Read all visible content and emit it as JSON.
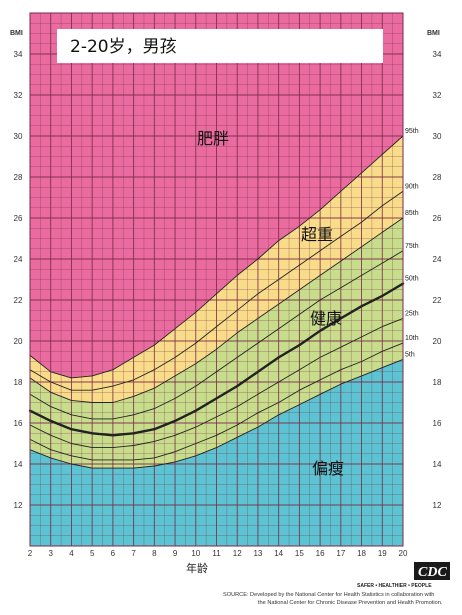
{
  "title": "2-20岁，男孩",
  "colors": {
    "obese": "#e96b9f",
    "overweight": "#f8dc8a",
    "healthy": "#c7dd8c",
    "underweight": "#5cc3d2",
    "grid": "#7a2a48",
    "curve": "#222222"
  },
  "chart_data": {
    "type": "line",
    "title": "2-20岁，男孩",
    "xlabel": "年龄",
    "ylabel": "BMI",
    "xlim": [
      2,
      20
    ],
    "ylim": [
      10,
      36
    ],
    "grid": true,
    "x_ticks": [
      "2",
      "3",
      "4",
      "5",
      "6",
      "7",
      "8",
      "9",
      "10",
      "11",
      "12",
      "13",
      "14",
      "15",
      "16",
      "17",
      "18",
      "19",
      "20"
    ],
    "y_ticks": [
      "12",
      "14",
      "16",
      "18",
      "20",
      "22",
      "24",
      "26",
      "28",
      "30",
      "32",
      "34"
    ],
    "x": [
      2,
      3,
      4,
      5,
      6,
      7,
      8,
      9,
      10,
      11,
      12,
      13,
      14,
      15,
      16,
      17,
      18,
      19,
      20
    ],
    "series": [
      {
        "name": "5th",
        "values": [
          14.7,
          14.3,
          14.0,
          13.8,
          13.8,
          13.8,
          13.9,
          14.1,
          14.4,
          14.8,
          15.3,
          15.8,
          16.4,
          16.9,
          17.4,
          17.9,
          18.3,
          18.7,
          19.1
        ]
      },
      {
        "name": "10th",
        "values": [
          15.2,
          14.7,
          14.4,
          14.2,
          14.2,
          14.2,
          14.3,
          14.6,
          15.0,
          15.4,
          15.9,
          16.5,
          17.0,
          17.6,
          18.1,
          18.6,
          19.0,
          19.5,
          19.9
        ]
      },
      {
        "name": "25th",
        "values": [
          15.9,
          15.4,
          15.0,
          14.8,
          14.8,
          14.9,
          15.1,
          15.4,
          15.8,
          16.3,
          16.8,
          17.4,
          18.0,
          18.6,
          19.2,
          19.7,
          20.2,
          20.7,
          21.1
        ]
      },
      {
        "name": "50th",
        "values": [
          16.6,
          16.1,
          15.7,
          15.5,
          15.4,
          15.5,
          15.7,
          16.1,
          16.6,
          17.2,
          17.8,
          18.5,
          19.2,
          19.8,
          20.5,
          21.1,
          21.7,
          22.2,
          22.8
        ]
      },
      {
        "name": "75th",
        "values": [
          17.4,
          16.8,
          16.4,
          16.2,
          16.2,
          16.4,
          16.7,
          17.2,
          17.8,
          18.5,
          19.2,
          19.9,
          20.6,
          21.3,
          22.0,
          22.6,
          23.2,
          23.8,
          24.4
        ]
      },
      {
        "name": "85th",
        "values": [
          18.2,
          17.5,
          17.1,
          17.0,
          17.0,
          17.3,
          17.7,
          18.3,
          18.9,
          19.6,
          20.4,
          21.1,
          21.8,
          22.5,
          23.2,
          23.9,
          24.6,
          25.3,
          26.0
        ]
      },
      {
        "name": "90th",
        "values": [
          18.6,
          18.0,
          17.6,
          17.6,
          17.8,
          18.1,
          18.6,
          19.2,
          19.9,
          20.7,
          21.5,
          22.3,
          23.0,
          23.7,
          24.4,
          25.1,
          25.8,
          26.6,
          27.3
        ]
      },
      {
        "name": "95th",
        "values": [
          19.3,
          18.5,
          18.2,
          18.3,
          18.6,
          19.2,
          19.8,
          20.6,
          21.4,
          22.3,
          23.2,
          24.0,
          24.9,
          25.6,
          26.4,
          27.3,
          28.2,
          29.1,
          30.0
        ]
      }
    ],
    "zones": [
      "肥胖",
      "超重",
      "健康",
      "偏瘦"
    ],
    "source": [
      "SOURCE: Developed by the National Center for Health Statistics in collaboration with",
      "the National Center for Chronic Disease Prevention and Health Promotion."
    ],
    "logo": {
      "text": "CDC",
      "tagline": "SAFER • HEALTHIER • PEOPLE"
    }
  }
}
